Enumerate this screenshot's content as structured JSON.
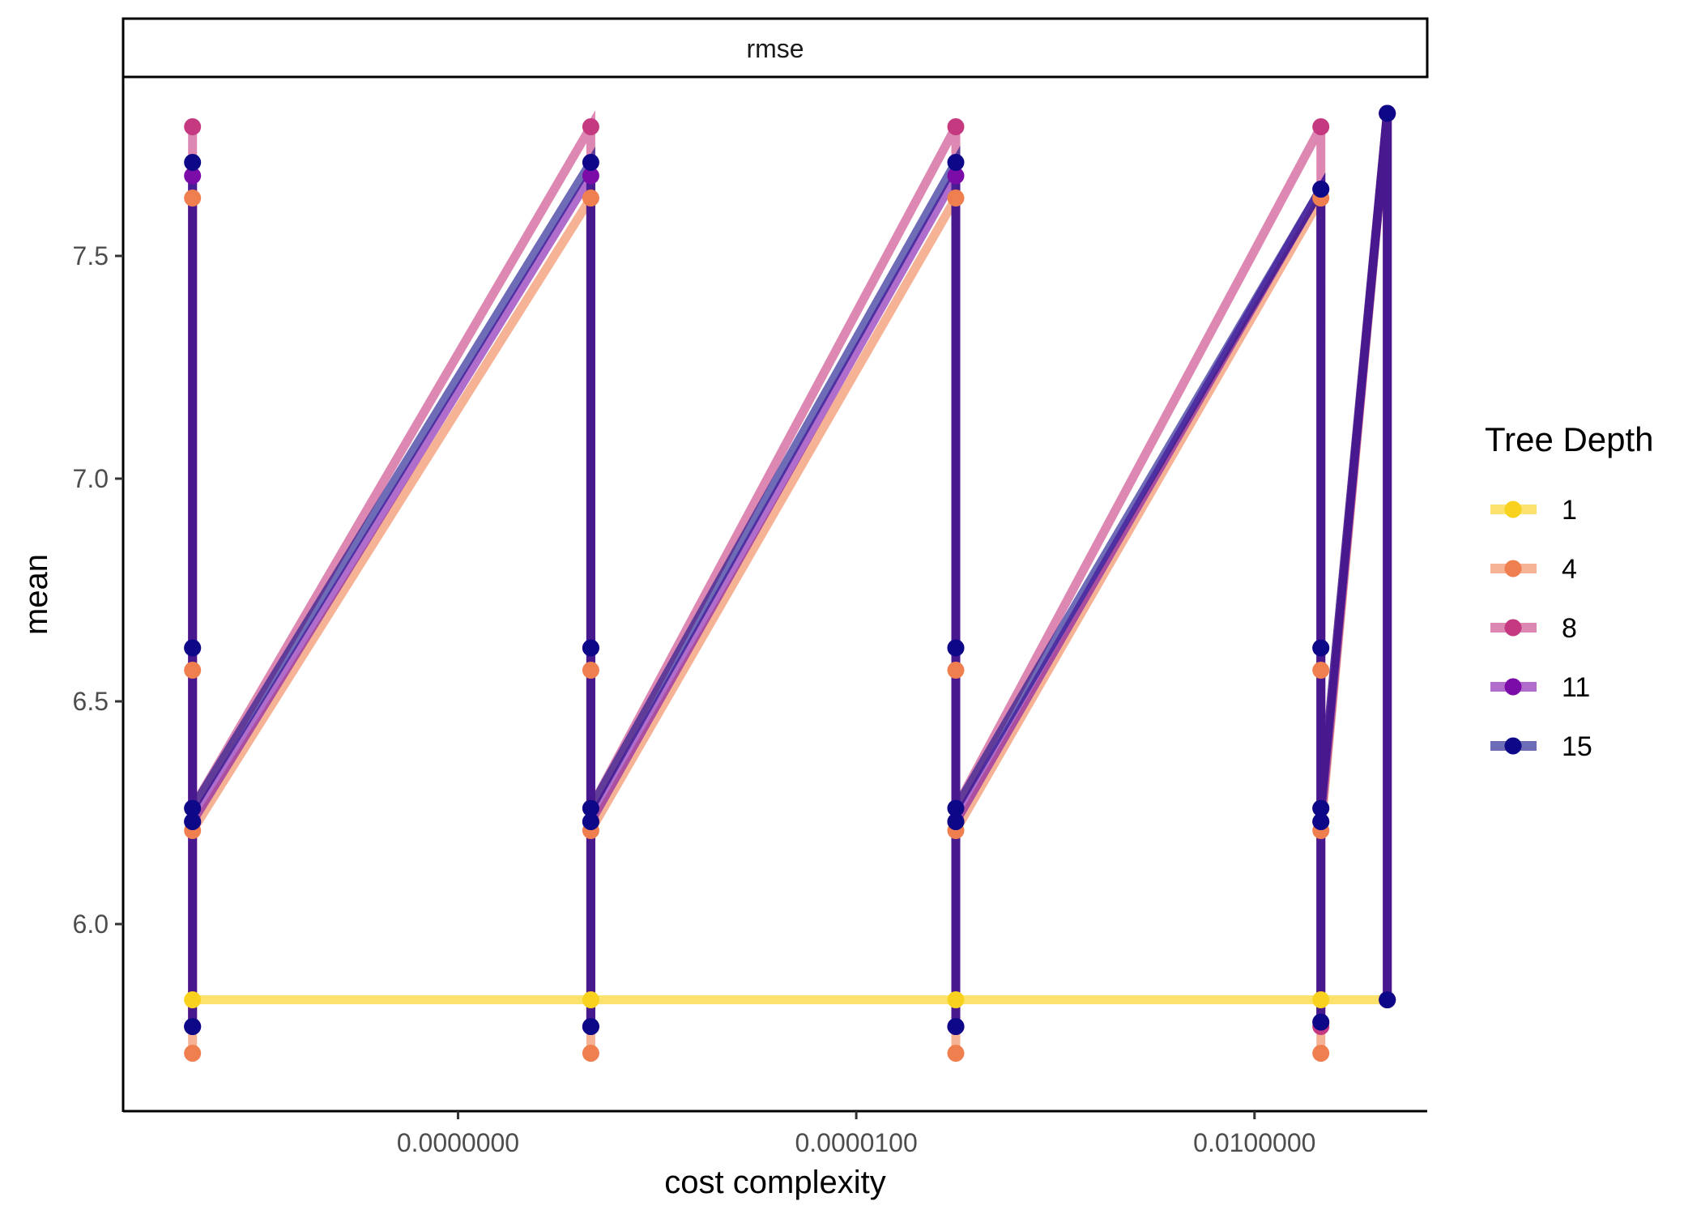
{
  "chart_data": {
    "type": "line",
    "facet_label": "rmse",
    "xlabel": "cost complexity",
    "ylabel": "mean",
    "x_scale": "log10",
    "x_tick_labels": [
      "0.0000000",
      "0.0000100",
      "0.0100000"
    ],
    "x_tick_values": [
      1e-08,
      1e-05,
      0.01
    ],
    "xlim": [
      3e-11,
      0.2
    ],
    "ylim": [
      5.58,
      7.9
    ],
    "y_ticks": [
      6.0,
      6.5,
      7.0,
      7.5
    ],
    "y_tick_labels": [
      "6.0",
      "6.5",
      "7.0",
      "7.5"
    ],
    "grid": false,
    "legend_title": "Tree Depth",
    "legend_position": "right",
    "x": [
      1e-10,
      1e-07,
      5.62e-05,
      0.0316,
      0.1
    ],
    "series": [
      {
        "name": "1",
        "color": "#F9D21F",
        "points": [
          [
            0,
            5.83
          ],
          [
            1,
            5.83
          ],
          [
            2,
            5.83
          ],
          [
            3,
            5.83
          ],
          [
            4,
            5.83
          ]
        ],
        "path": [
          [
            0,
            5.83
          ],
          [
            1,
            5.83
          ],
          [
            2,
            5.83
          ],
          [
            3,
            5.83
          ],
          [
            4,
            5.83
          ]
        ]
      },
      {
        "name": "4",
        "color": "#EF7F4F",
        "points": [
          [
            0,
            5.71
          ],
          [
            0,
            6.21
          ],
          [
            0,
            6.57
          ],
          [
            0,
            7.63
          ],
          [
            1,
            5.71
          ],
          [
            1,
            6.21
          ],
          [
            1,
            6.57
          ],
          [
            1,
            7.63
          ],
          [
            2,
            5.71
          ],
          [
            2,
            6.21
          ],
          [
            2,
            6.57
          ],
          [
            2,
            7.63
          ],
          [
            3,
            5.71
          ],
          [
            3,
            6.21
          ],
          [
            3,
            6.57
          ],
          [
            3,
            7.63
          ],
          [
            4,
            5.83
          ],
          [
            4,
            7.82
          ]
        ],
        "path": [
          [
            0,
            5.71
          ],
          [
            0,
            7.63
          ],
          [
            0,
            6.21
          ],
          [
            1,
            7.63
          ],
          [
            1,
            5.71
          ],
          [
            1,
            7.63
          ],
          [
            1,
            6.21
          ],
          [
            2,
            7.63
          ],
          [
            2,
            5.71
          ],
          [
            2,
            7.63
          ],
          [
            2,
            6.21
          ],
          [
            3,
            7.63
          ],
          [
            3,
            5.71
          ],
          [
            3,
            7.63
          ],
          [
            3,
            6.21
          ],
          [
            4,
            7.82
          ],
          [
            4,
            5.83
          ]
        ]
      },
      {
        "name": "8",
        "color": "#C4397F",
        "points": [
          [
            0,
            7.79
          ],
          [
            0,
            6.26
          ],
          [
            0,
            5.77
          ],
          [
            1,
            7.79
          ],
          [
            1,
            6.26
          ],
          [
            1,
            5.77
          ],
          [
            2,
            7.79
          ],
          [
            2,
            6.26
          ],
          [
            2,
            5.77
          ],
          [
            3,
            7.79
          ],
          [
            3,
            6.26
          ],
          [
            3,
            5.77
          ],
          [
            4,
            5.83
          ],
          [
            4,
            7.82
          ]
        ],
        "path": [
          [
            0,
            5.77
          ],
          [
            0,
            7.79
          ],
          [
            0,
            6.26
          ],
          [
            1,
            7.79
          ],
          [
            1,
            5.77
          ],
          [
            1,
            7.79
          ],
          [
            1,
            6.26
          ],
          [
            2,
            7.79
          ],
          [
            2,
            5.77
          ],
          [
            2,
            7.79
          ],
          [
            2,
            6.26
          ],
          [
            3,
            7.79
          ],
          [
            3,
            5.77
          ],
          [
            3,
            7.79
          ],
          [
            3,
            6.26
          ],
          [
            4,
            7.82
          ],
          [
            4,
            5.83
          ]
        ]
      },
      {
        "name": "11",
        "color": "#7B0CA8",
        "points": [
          [
            0,
            7.68
          ],
          [
            0,
            6.62
          ],
          [
            0,
            6.23
          ],
          [
            0,
            5.77
          ],
          [
            1,
            7.68
          ],
          [
            1,
            6.62
          ],
          [
            1,
            6.23
          ],
          [
            1,
            5.77
          ],
          [
            2,
            7.68
          ],
          [
            2,
            6.62
          ],
          [
            2,
            6.23
          ],
          [
            2,
            5.77
          ],
          [
            3,
            7.65
          ],
          [
            3,
            6.62
          ],
          [
            3,
            6.23
          ],
          [
            3,
            5.78
          ],
          [
            4,
            5.83
          ],
          [
            4,
            7.82
          ]
        ],
        "path": [
          [
            0,
            5.77
          ],
          [
            0,
            7.68
          ],
          [
            0,
            6.23
          ],
          [
            1,
            7.68
          ],
          [
            1,
            5.77
          ],
          [
            1,
            7.68
          ],
          [
            1,
            6.23
          ],
          [
            2,
            7.68
          ],
          [
            2,
            5.77
          ],
          [
            2,
            7.68
          ],
          [
            2,
            6.23
          ],
          [
            3,
            7.65
          ],
          [
            3,
            5.78
          ],
          [
            3,
            7.65
          ],
          [
            3,
            6.23
          ],
          [
            4,
            7.82
          ],
          [
            4,
            5.83
          ]
        ]
      },
      {
        "name": "15",
        "color": "#0D0887",
        "points": [
          [
            0,
            7.71
          ],
          [
            0,
            6.62
          ],
          [
            0,
            6.26
          ],
          [
            0,
            6.23
          ],
          [
            0,
            5.77
          ],
          [
            1,
            7.71
          ],
          [
            1,
            6.62
          ],
          [
            1,
            6.26
          ],
          [
            1,
            6.23
          ],
          [
            1,
            5.77
          ],
          [
            2,
            7.71
          ],
          [
            2,
            6.62
          ],
          [
            2,
            6.26
          ],
          [
            2,
            6.23
          ],
          [
            2,
            5.77
          ],
          [
            3,
            7.65
          ],
          [
            3,
            6.62
          ],
          [
            3,
            6.26
          ],
          [
            3,
            6.23
          ],
          [
            3,
            5.78
          ],
          [
            4,
            5.83
          ],
          [
            4,
            7.82
          ]
        ],
        "path": [
          [
            0,
            5.77
          ],
          [
            0,
            7.71
          ],
          [
            0,
            6.26
          ],
          [
            1,
            7.71
          ],
          [
            1,
            5.77
          ],
          [
            1,
            7.71
          ],
          [
            1,
            6.26
          ],
          [
            2,
            7.71
          ],
          [
            2,
            5.77
          ],
          [
            2,
            7.71
          ],
          [
            2,
            6.26
          ],
          [
            3,
            7.65
          ],
          [
            3,
            5.78
          ],
          [
            3,
            7.65
          ],
          [
            3,
            6.26
          ],
          [
            4,
            7.82
          ],
          [
            4,
            5.83
          ]
        ]
      }
    ]
  }
}
